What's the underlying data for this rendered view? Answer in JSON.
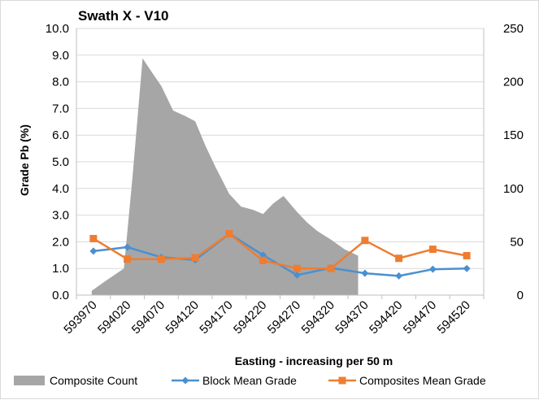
{
  "chart_data": {
    "type": "line",
    "title": "Swath X - V10",
    "xlabel": "Easting - increasing per 50 m",
    "ylabel": "Grade Pb (%)",
    "ylim": [
      0,
      10
    ],
    "y_ticks": [
      "0.0",
      "1.0",
      "2.0",
      "3.0",
      "4.0",
      "5.0",
      "6.0",
      "7.0",
      "8.0",
      "9.0",
      "10.0"
    ],
    "y2lim": [
      0,
      250
    ],
    "y2_ticks": [
      "0",
      "50",
      "100",
      "150",
      "200",
      "250"
    ],
    "categories": [
      "593970",
      "594020",
      "594070",
      "594120",
      "594170",
      "594220",
      "594270",
      "594320",
      "594370",
      "594420",
      "594470",
      "594520"
    ],
    "area_series": {
      "name": "Composite Count",
      "axis": "secondary",
      "color": "#a6a6a6",
      "profile": [
        [
          -0.05,
          4
        ],
        [
          0.3,
          12
        ],
        [
          0.9,
          25
        ],
        [
          1.15,
          110
        ],
        [
          1.45,
          222
        ],
        [
          1.7,
          210
        ],
        [
          2.0,
          196
        ],
        [
          2.35,
          173
        ],
        [
          2.7,
          168
        ],
        [
          3.0,
          163
        ],
        [
          3.3,
          140
        ],
        [
          3.6,
          120
        ],
        [
          4.0,
          95
        ],
        [
          4.35,
          83
        ],
        [
          4.7,
          80
        ],
        [
          5.0,
          76
        ],
        [
          5.3,
          86
        ],
        [
          5.6,
          93
        ],
        [
          6.0,
          78
        ],
        [
          6.3,
          68
        ],
        [
          6.6,
          60
        ],
        [
          7.0,
          52
        ],
        [
          7.4,
          43
        ],
        [
          7.8,
          37
        ]
      ]
    },
    "series": [
      {
        "name": "Block Mean Grade",
        "color": "#4a90d0",
        "marker": "diamond",
        "values": [
          1.65,
          1.8,
          1.42,
          1.32,
          2.3,
          1.5,
          0.75,
          1.02,
          0.82,
          0.72,
          0.97,
          1.0
        ]
      },
      {
        "name": "Composites Mean Grade",
        "color": "#ee7d31",
        "marker": "square",
        "values": [
          2.12,
          1.35,
          1.35,
          1.4,
          2.3,
          1.3,
          1.0,
          1.0,
          2.05,
          1.38,
          1.72,
          1.48
        ]
      }
    ],
    "legend": {
      "position": "bottom",
      "items": [
        {
          "label": "Composite Count",
          "kind": "area"
        },
        {
          "label": "Block Mean Grade",
          "kind": "line"
        },
        {
          "label": "Composites Mean Grade",
          "kind": "line"
        }
      ]
    }
  }
}
